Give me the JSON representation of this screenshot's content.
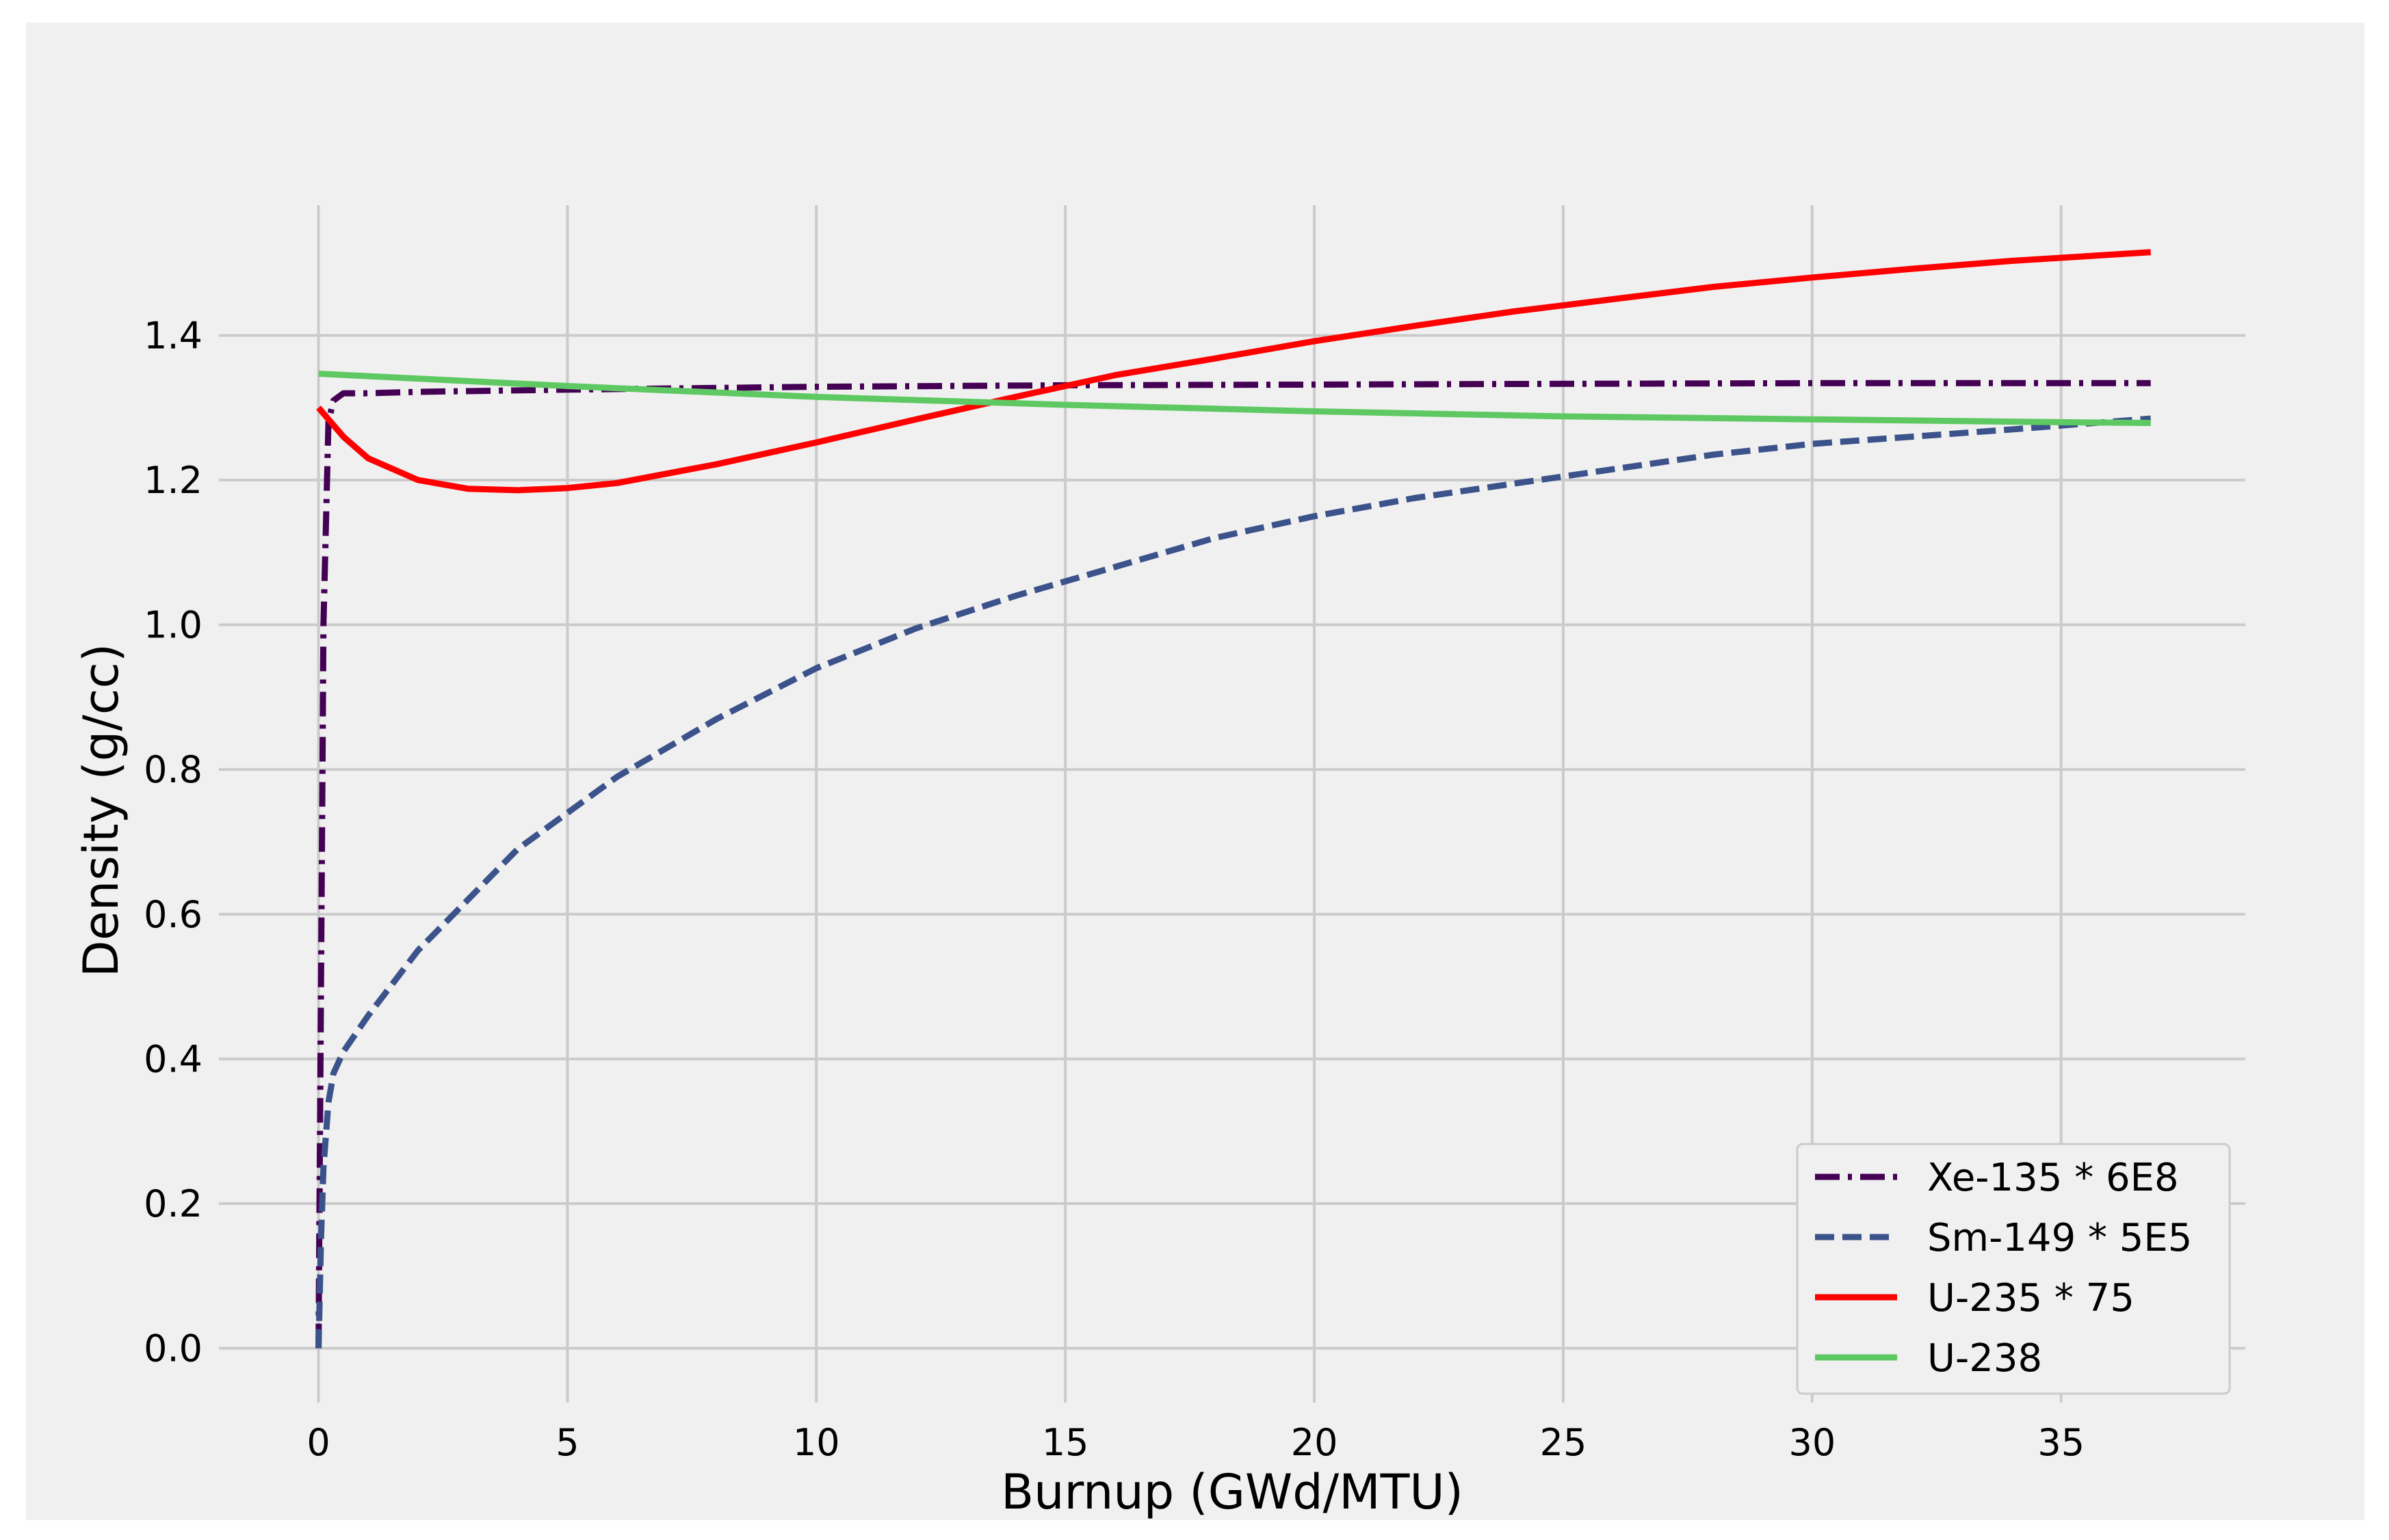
{
  "chart_data": {
    "type": "line",
    "title": "",
    "xlabel": "Burnup (GWd/MTU)",
    "ylabel": "Density (g/cc)",
    "xlim": [
      -2.0,
      38.7
    ],
    "ylim": [
      -0.075,
      1.58
    ],
    "xticks": [
      0,
      5,
      10,
      15,
      20,
      25,
      30,
      35
    ],
    "yticks": [
      0.0,
      0.2,
      0.4,
      0.6,
      0.8,
      1.0,
      1.2,
      1.4
    ],
    "xtick_labels": [
      "0",
      "5",
      "10",
      "15",
      "20",
      "25",
      "30",
      "35"
    ],
    "ytick_labels": [
      "0.0",
      "0.2",
      "0.4",
      "0.6",
      "0.8",
      "1.0",
      "1.2",
      "1.4"
    ],
    "grid": true,
    "legend_position": "lower-right",
    "series": [
      {
        "name": "Xe-135 * 6E8",
        "color": "#440154",
        "style": "dashdot",
        "x": [
          0,
          0.05,
          0.1,
          0.2,
          0.3,
          0.5,
          1,
          2,
          5,
          10,
          15,
          20,
          25,
          30,
          35,
          36.8
        ],
        "y": [
          0.0,
          0.5,
          1.0,
          1.28,
          1.31,
          1.32,
          1.32,
          1.322,
          1.325,
          1.329,
          1.331,
          1.332,
          1.333,
          1.334,
          1.334,
          1.334
        ]
      },
      {
        "name": "Sm-149 * 5E5",
        "color": "#3b528b",
        "style": "dashed",
        "x": [
          0,
          0.05,
          0.1,
          0.2,
          0.3,
          0.5,
          1,
          2,
          3,
          4,
          5,
          6,
          8,
          10,
          12,
          14,
          16,
          18,
          20,
          22,
          24,
          26,
          28,
          30,
          32,
          34,
          36.8
        ],
        "y": [
          0.0,
          0.15,
          0.25,
          0.34,
          0.38,
          0.41,
          0.46,
          0.55,
          0.62,
          0.69,
          0.74,
          0.79,
          0.87,
          0.94,
          0.995,
          1.04,
          1.08,
          1.12,
          1.15,
          1.175,
          1.195,
          1.215,
          1.235,
          1.25,
          1.26,
          1.27,
          1.285
        ]
      },
      {
        "name": "U-235 * 75",
        "color": "#ff0000",
        "style": "solid",
        "x": [
          0,
          0.5,
          1,
          2,
          3,
          4,
          5,
          6,
          8,
          10,
          12,
          14,
          16,
          18,
          20,
          22,
          24,
          26,
          28,
          30,
          32,
          34,
          36.8
        ],
        "y": [
          1.3,
          1.26,
          1.23,
          1.2,
          1.188,
          1.186,
          1.189,
          1.196,
          1.222,
          1.252,
          1.284,
          1.315,
          1.345,
          1.368,
          1.392,
          1.413,
          1.433,
          1.45,
          1.467,
          1.48,
          1.492,
          1.503,
          1.515
        ]
      },
      {
        "name": "U-238",
        "color": "#5ec962",
        "style": "solid",
        "x": [
          0,
          5,
          10,
          15,
          20,
          25,
          30,
          35,
          36.8
        ],
        "y": [
          1.347,
          1.33,
          1.315,
          1.304,
          1.295,
          1.288,
          1.284,
          1.28,
          1.279
        ]
      }
    ]
  }
}
